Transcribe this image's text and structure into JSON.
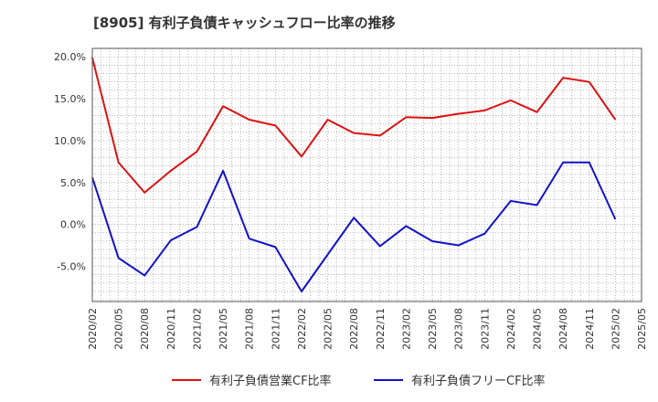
{
  "chart_data": {
    "type": "line",
    "title": "[8905]  有利子負債キャッシュフロー比率の推移",
    "xlabel": "",
    "ylabel": "",
    "x": [
      "2020/02",
      "2020/05",
      "2020/08",
      "2020/11",
      "2021/02",
      "2021/05",
      "2021/08",
      "2021/11",
      "2022/02",
      "2022/05",
      "2022/08",
      "2022/11",
      "2023/02",
      "2023/05",
      "2023/08",
      "2023/11",
      "2024/02",
      "2024/05",
      "2024/08",
      "2024/11",
      "2025/02",
      "2025/05"
    ],
    "ylim": [
      -9.2,
      21.0
    ],
    "yticks": [
      20.0,
      15.0,
      10.0,
      5.0,
      0.0,
      -5.0
    ],
    "ytick_labels": [
      "20.0%",
      "15.0%",
      "10.0%",
      "5.0%",
      "0.0%",
      "-5.0%"
    ],
    "grid": true,
    "legend_position": "bottom",
    "series": [
      {
        "name": "有利子負債営業CF比率",
        "color": "#dd1111",
        "values": [
          19.9,
          7.4,
          3.8,
          6.4,
          8.7,
          14.1,
          12.5,
          11.8,
          8.1,
          12.5,
          10.9,
          10.6,
          12.8,
          12.7,
          13.2,
          13.6,
          14.8,
          13.4,
          17.5,
          17.0,
          12.5,
          null
        ]
      },
      {
        "name": "有利子負債フリーCF比率",
        "color": "#1111cc",
        "values": [
          5.6,
          -4.0,
          -6.1,
          -1.9,
          -0.3,
          6.4,
          -1.7,
          -2.7,
          -8.0,
          -3.6,
          0.8,
          -2.6,
          -0.2,
          -2.0,
          -2.5,
          -1.1,
          2.8,
          2.3,
          7.4,
          7.4,
          0.6,
          null
        ]
      }
    ]
  }
}
